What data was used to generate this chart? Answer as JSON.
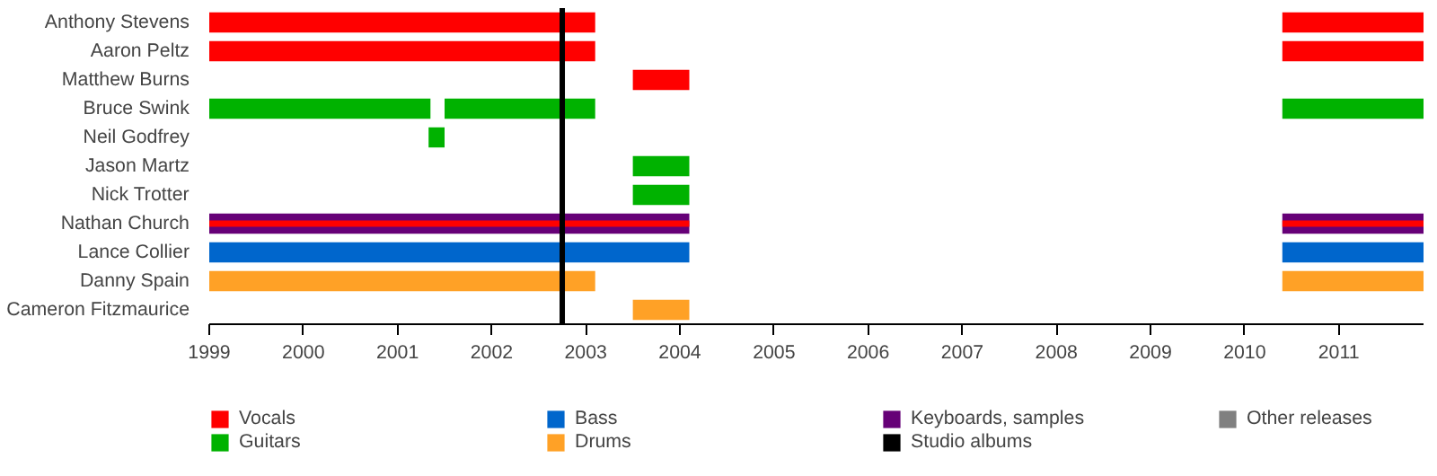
{
  "chart_data": {
    "type": "bar",
    "orientation": "horizontal",
    "categories": [
      "Anthony Stevens",
      "Aaron Peltz",
      "Matthew Burns",
      "Bruce Swink",
      "Neil Godfrey",
      "Jason Martz",
      "Nick Trotter",
      "Nathan Church",
      "Lance Collier",
      "Danny Spain",
      "Cameron Fitzmaurice"
    ],
    "series": [
      {
        "name": "Vocals",
        "color": "#ff0000",
        "values": [
          4.1,
          4.1,
          0.6,
          null,
          null,
          null,
          null,
          5.1,
          null,
          null,
          null
        ],
        "base": [
          1999,
          1999,
          2003.5,
          null,
          null,
          null,
          null,
          1999,
          null,
          null,
          null
        ]
      },
      {
        "color": "#ff0000",
        "values": [
          1.5,
          1.5,
          null,
          null,
          null,
          null,
          null,
          1.5,
          null,
          null,
          null
        ],
        "base": [
          2010.4,
          2010.4,
          null,
          null,
          null,
          null,
          null,
          2010.4,
          null,
          null,
          null
        ]
      },
      {
        "name": "Guitars",
        "color": "#00b200",
        "values": [
          null,
          null,
          null,
          2.35,
          null,
          0.6,
          0.6,
          null,
          null,
          null,
          null
        ],
        "base": [
          null,
          null,
          null,
          1999,
          null,
          2003.5,
          2003.5,
          null,
          null,
          null,
          null
        ]
      },
      {
        "color": "#00b200",
        "values": [
          null,
          null,
          null,
          1.6,
          0.17,
          null,
          null,
          null,
          null,
          null,
          null
        ],
        "base": [
          null,
          null,
          null,
          2001.5,
          2001.33,
          null,
          null,
          null,
          null,
          null,
          null
        ]
      },
      {
        "color": "#00b200",
        "values": [
          null,
          null,
          null,
          1.5,
          null,
          null,
          null,
          null,
          null,
          null,
          null
        ],
        "base": [
          null,
          null,
          null,
          2010.4,
          null,
          null,
          null,
          null,
          null,
          null,
          null
        ]
      },
      {
        "name": "Bass",
        "color": "#0066cc",
        "values": [
          null,
          null,
          null,
          null,
          null,
          null,
          null,
          null,
          5.1,
          null,
          null
        ],
        "base": [
          null,
          null,
          null,
          null,
          null,
          null,
          null,
          null,
          1999,
          null,
          null
        ]
      },
      {
        "color": "#0066cc",
        "values": [
          null,
          null,
          null,
          null,
          null,
          null,
          null,
          null,
          1.5,
          null,
          null
        ],
        "base": [
          null,
          null,
          null,
          null,
          null,
          null,
          null,
          null,
          2010.4,
          null,
          null
        ]
      },
      {
        "name": "Drums",
        "color": "#ffa126",
        "values": [
          null,
          null,
          null,
          null,
          null,
          null,
          null,
          null,
          null,
          4.1,
          0.6
        ],
        "base": [
          null,
          null,
          null,
          null,
          null,
          null,
          null,
          null,
          null,
          1999,
          2003.5
        ]
      },
      {
        "color": "#ffa126",
        "values": [
          null,
          null,
          null,
          null,
          null,
          null,
          null,
          null,
          null,
          1.5,
          null
        ],
        "base": [
          null,
          null,
          null,
          null,
          null,
          null,
          null,
          null,
          null,
          2010.4,
          null
        ]
      },
      {
        "name": "Keyboards, samples",
        "color": "#660077",
        "values": [
          null,
          null,
          null,
          null,
          null,
          null,
          null,
          5.1,
          null,
          null,
          null
        ],
        "base": [
          null,
          null,
          null,
          null,
          null,
          null,
          null,
          1999,
          null,
          null,
          null
        ]
      },
      {
        "color": "#660077",
        "values": [
          null,
          null,
          null,
          null,
          null,
          null,
          null,
          1.5,
          null,
          null,
          null
        ],
        "base": [
          null,
          null,
          null,
          null,
          null,
          null,
          null,
          2010.4,
          null,
          null,
          null
        ]
      },
      {
        "name": "Other releases",
        "color": "#808080",
        "values": [
          null,
          null,
          null,
          null,
          null,
          null,
          null,
          null,
          null,
          null,
          null
        ],
        "base": [
          null,
          null,
          null,
          null,
          null,
          null,
          null,
          null,
          null,
          null,
          null
        ]
      }
    ],
    "ref_lines": [
      {
        "axis": "x",
        "value": 2002.75,
        "label": "Studio albums",
        "color": "#000000"
      }
    ],
    "xlim": [
      1999,
      2011.9
    ],
    "xticks": [
      1999,
      2000,
      2001,
      2002,
      2003,
      2004,
      2005,
      2006,
      2007,
      2008,
      2009,
      2010,
      2011
    ],
    "grid": false,
    "legend": "bottom"
  }
}
